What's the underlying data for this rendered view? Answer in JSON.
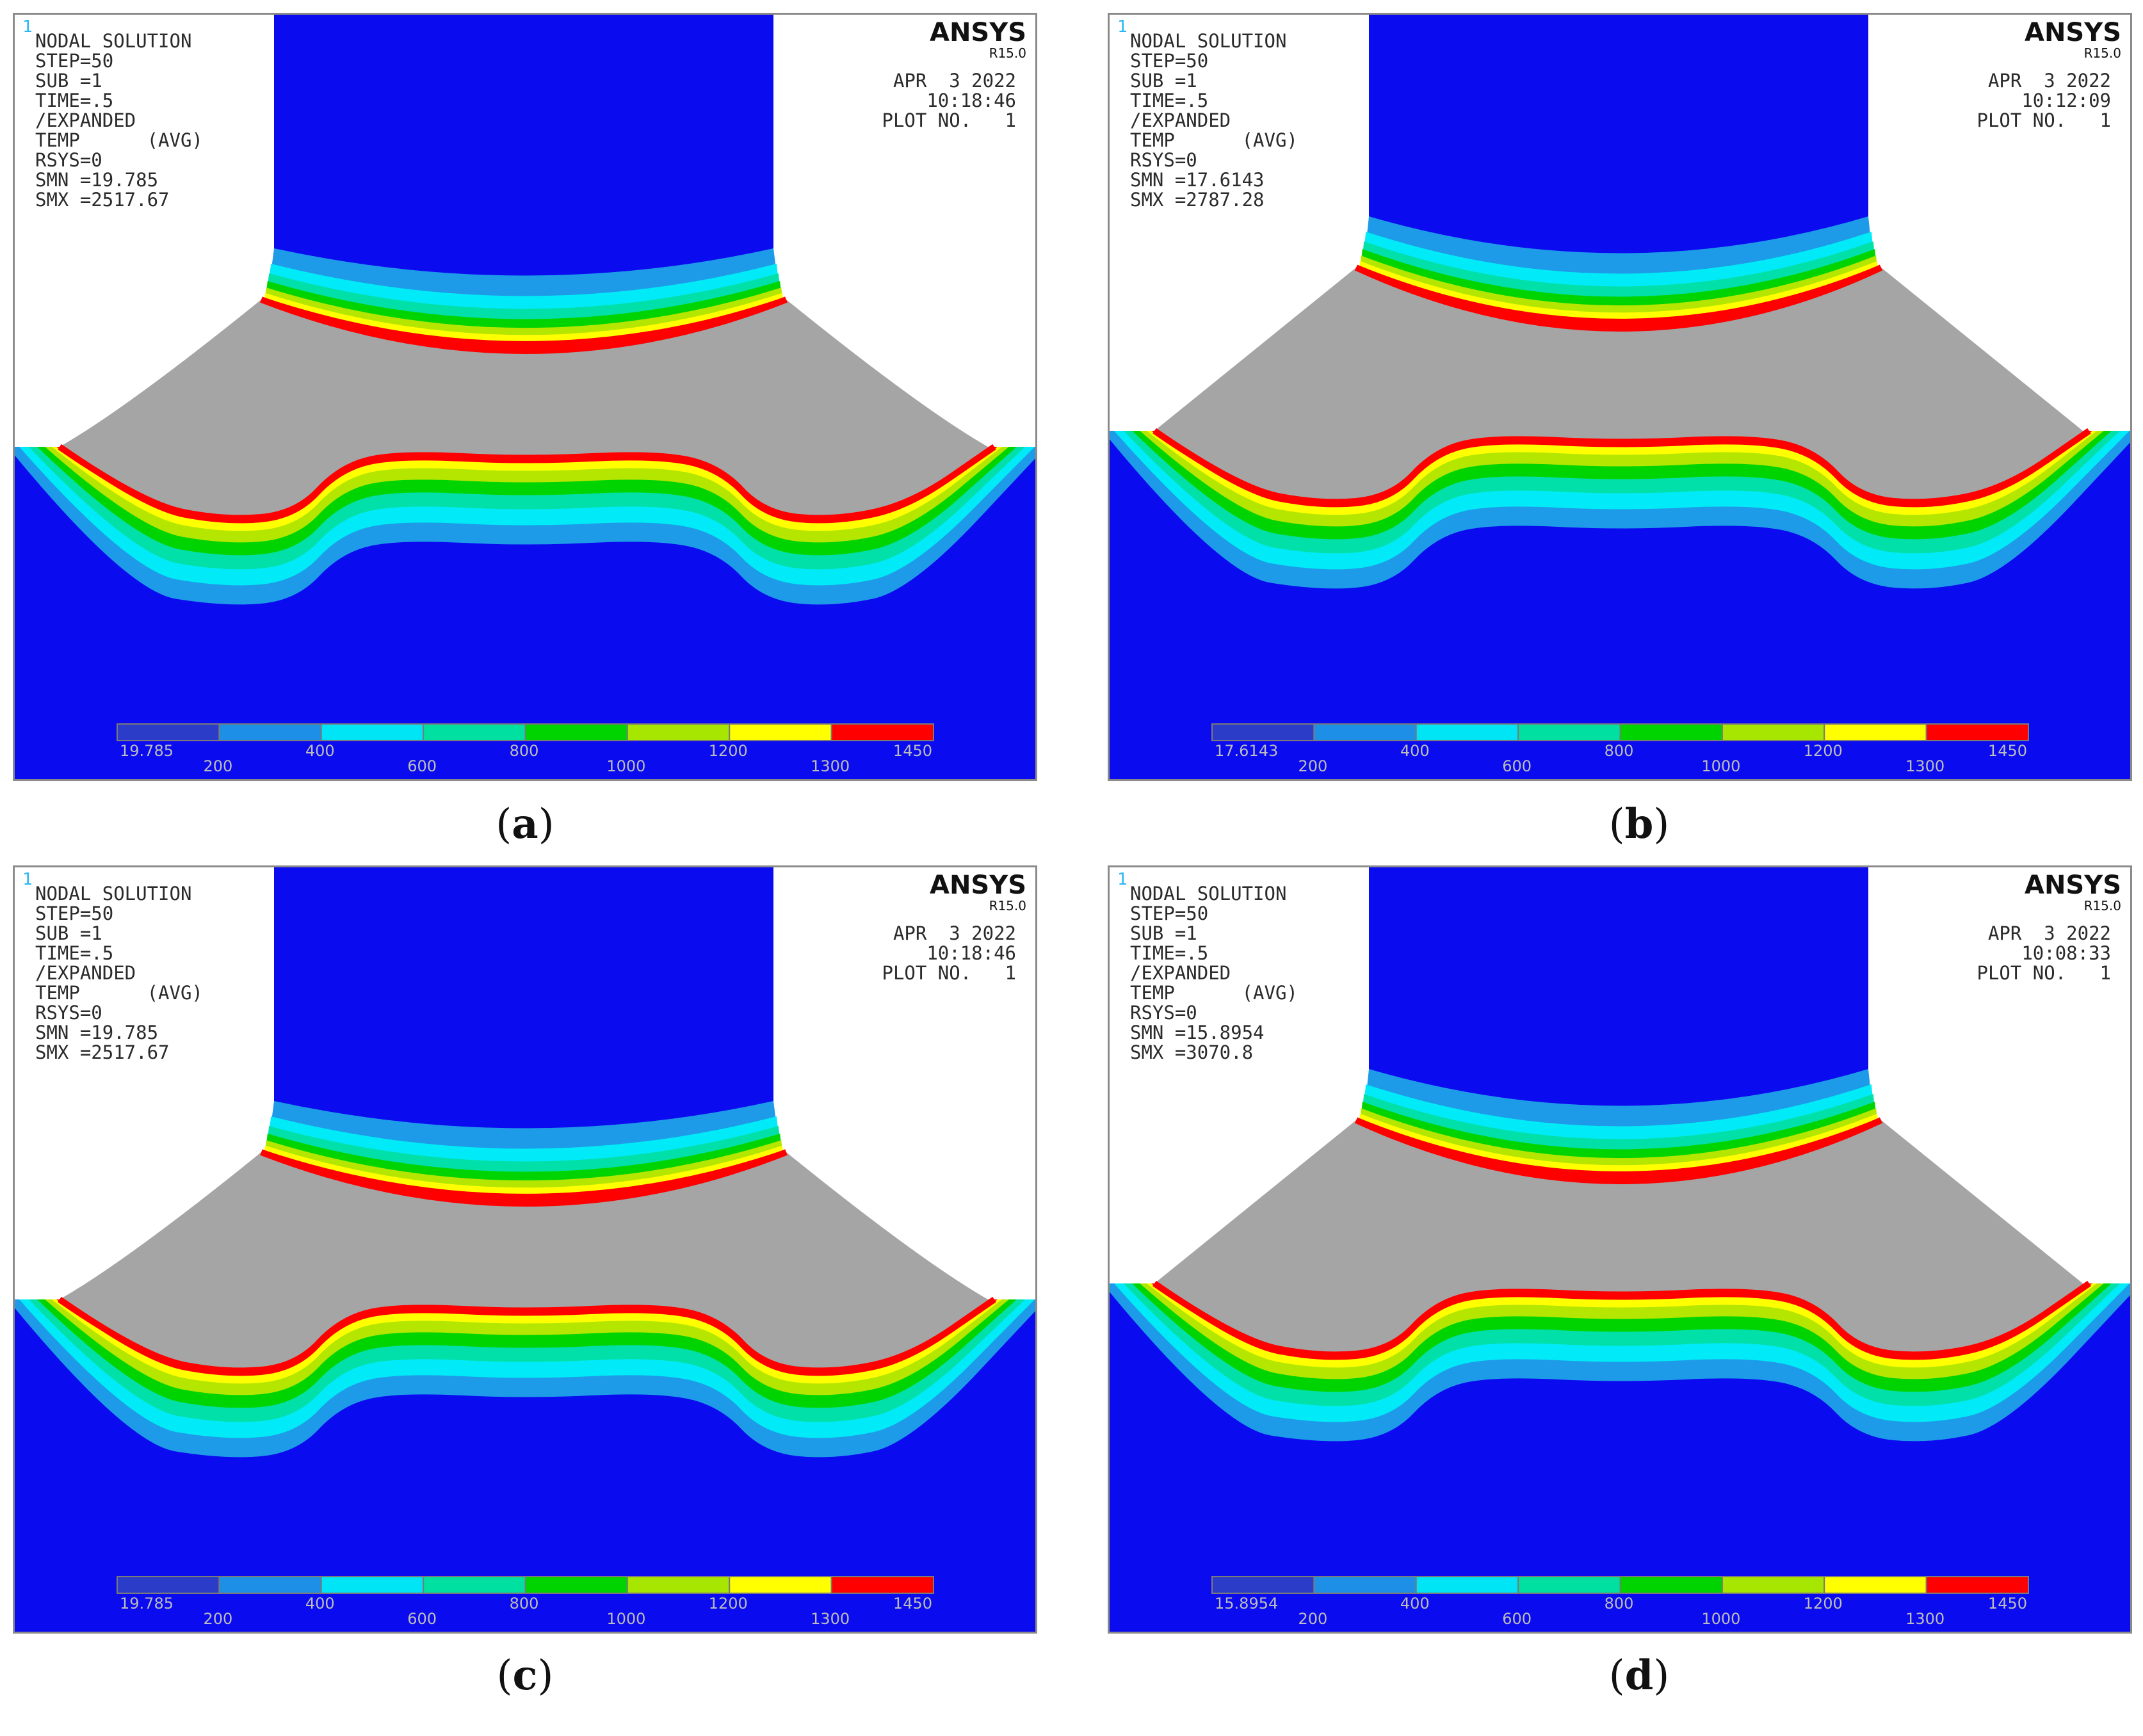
{
  "panels": [
    {
      "caption_letter": "a",
      "window_number": "1",
      "brand": "ANSYS",
      "release": "R15.0",
      "info": [
        "NODAL SOLUTION",
        "STEP=50",
        "SUB =1",
        "TIME=.5",
        "/EXPANDED",
        "TEMP      (AVG)",
        "RSYS=0",
        "SMN =19.785",
        "SMX =2517.67"
      ],
      "stamp": [
        "APR  3 2022",
        "10:18:46",
        "PLOT NO.   1"
      ],
      "legend_min": "19.785",
      "shape": "tall"
    },
    {
      "caption_letter": "b",
      "window_number": "1",
      "brand": "ANSYS",
      "release": "R15.0",
      "info": [
        "NODAL SOLUTION",
        "STEP=50",
        "SUB =1",
        "TIME=.5",
        "/EXPANDED",
        "TEMP      (AVG)",
        "RSYS=0",
        "SMN =17.6143",
        "SMX =2787.28"
      ],
      "stamp": [
        "APR  3 2022",
        "10:12:09",
        "PLOT NO.   1"
      ],
      "legend_min": "17.6143",
      "shape": "wide"
    },
    {
      "caption_letter": "c",
      "window_number": "1",
      "brand": "ANSYS",
      "release": "R15.0",
      "info": [
        "NODAL SOLUTION",
        "STEP=50",
        "SUB =1",
        "TIME=.5",
        "/EXPANDED",
        "TEMP      (AVG)",
        "RSYS=0",
        "SMN =19.785",
        "SMX =2517.67"
      ],
      "stamp": [
        "APR  3 2022",
        "10:18:46",
        "PLOT NO.   1"
      ],
      "legend_min": "19.785",
      "shape": "tall"
    },
    {
      "caption_letter": "d",
      "window_number": "1",
      "brand": "ANSYS",
      "release": "R15.0",
      "info": [
        "NODAL SOLUTION",
        "STEP=50",
        "SUB =1",
        "TIME=.5",
        "/EXPANDED",
        "TEMP      (AVG)",
        "RSYS=0",
        "SMN =15.8954",
        "SMX =3070.8"
      ],
      "stamp": [
        "APR  3 2022",
        "10:08:33",
        "PLOT NO.   1"
      ],
      "legend_min": "15.8954",
      "shape": "wide"
    }
  ],
  "legend": {
    "ticks": [
      "200",
      "400",
      "600",
      "800",
      "1000",
      "1200",
      "1300",
      "1450"
    ],
    "colors": [
      "#2a3cc8",
      "#1e8fe6",
      "#00e5f5",
      "#00e0a0",
      "#00d400",
      "#a6e600",
      "#ffff00",
      "#ff0000"
    ]
  },
  "palette": {
    "cold": "#0b0bf0",
    "band_outer": "#1e9be8",
    "band_cyan": "#00ebf7",
    "band_teal": "#00e0a8",
    "band_green": "#00d400",
    "band_lime": "#b4e600",
    "band_yellow": "#ffff00",
    "band_red": "#ff0000",
    "molten": "#a5a5a5"
  }
}
